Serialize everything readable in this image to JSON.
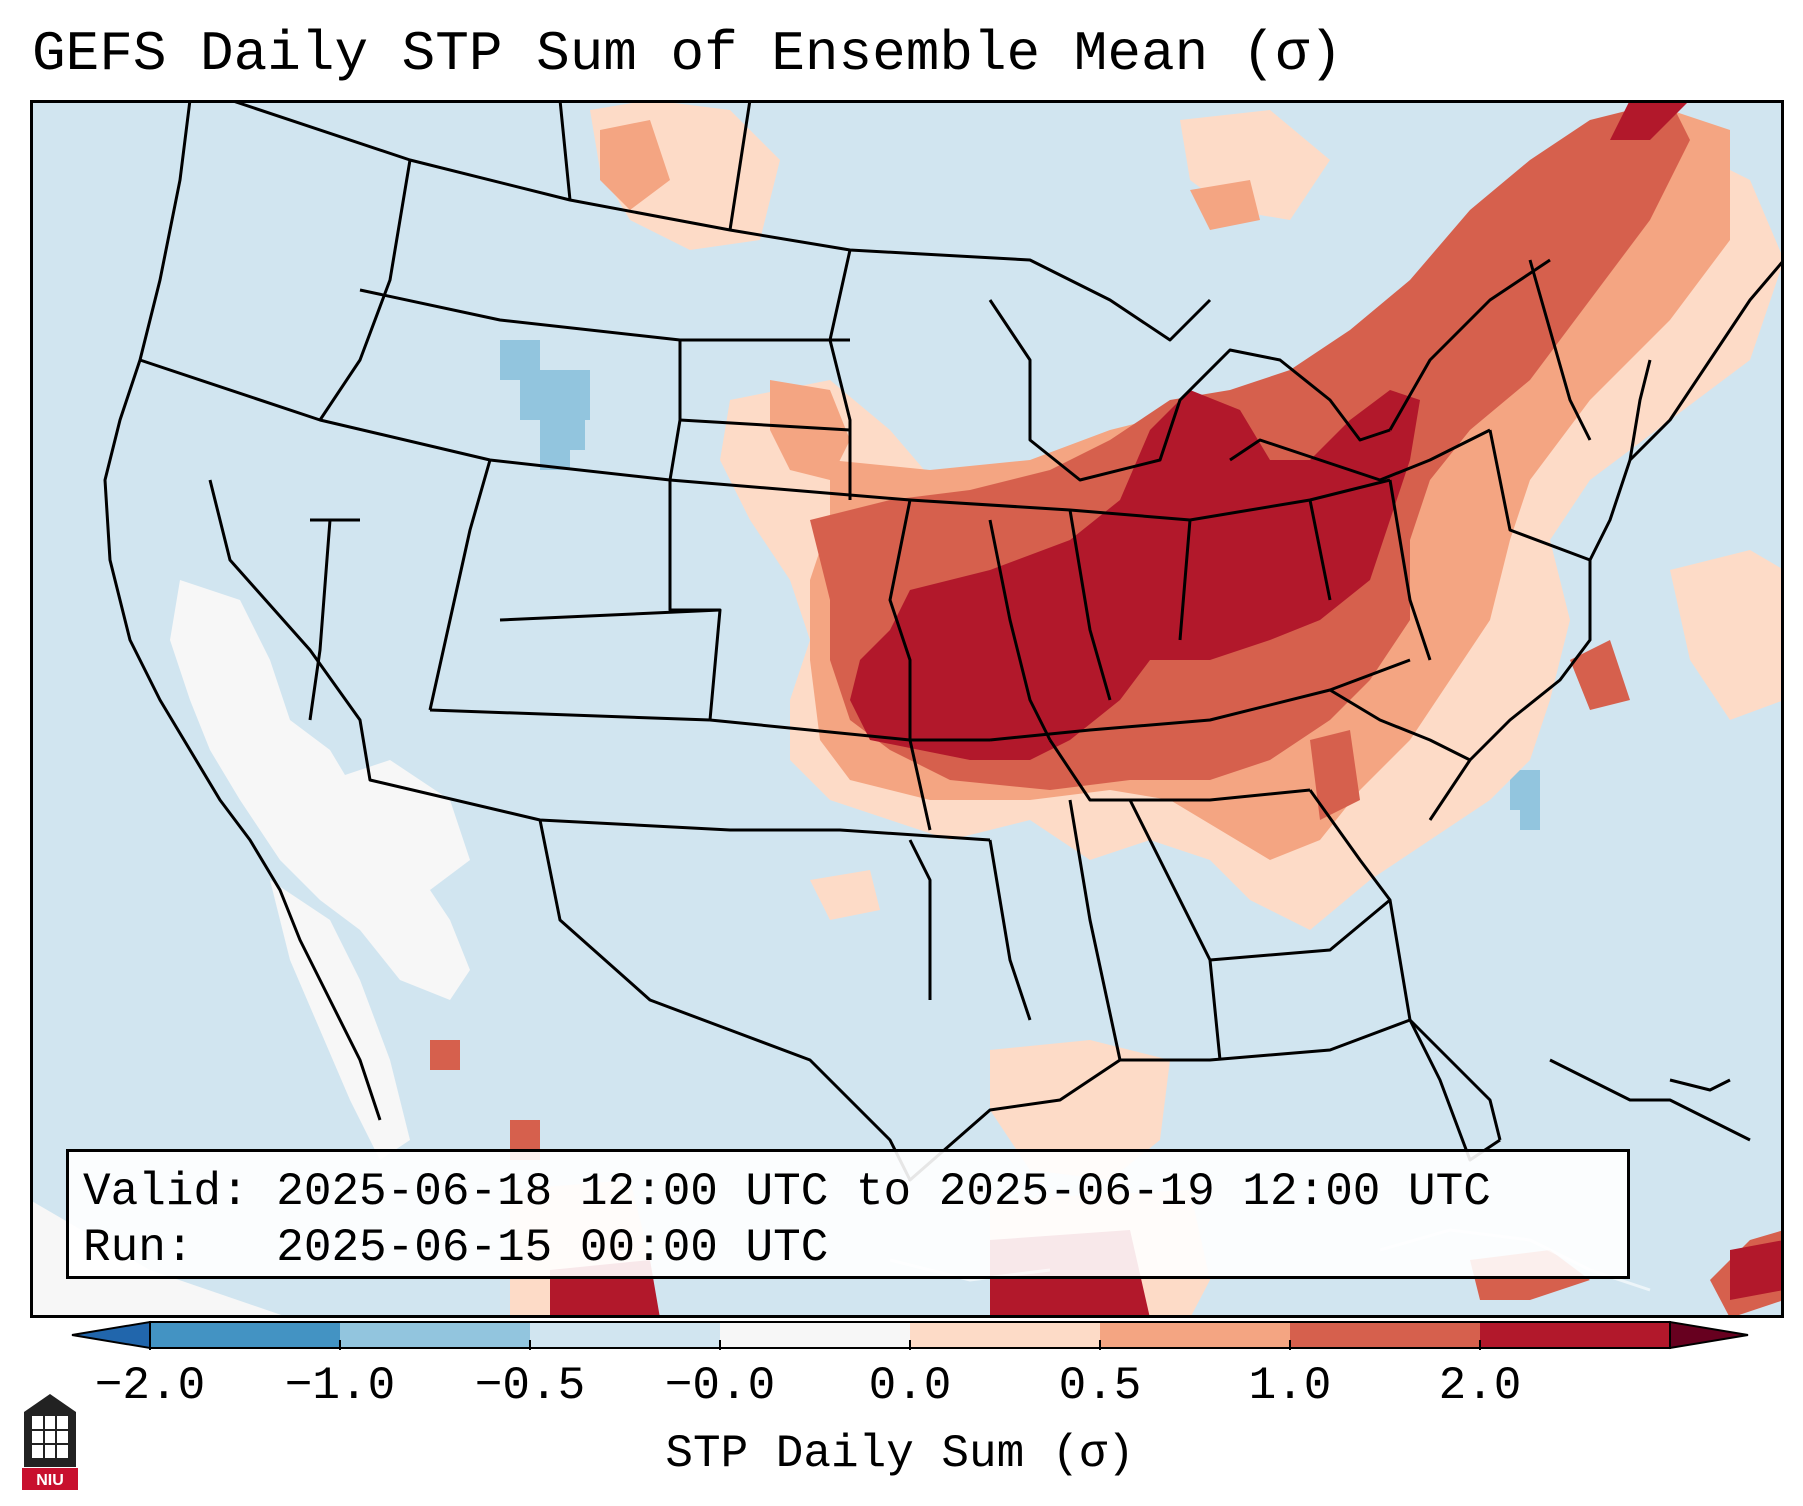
{
  "title": "GEFS Daily STP Sum of Ensemble Mean (σ)",
  "info": {
    "valid_line": "Valid: 2025-06-18 12:00 UTC to 2025-06-19 12:00 UTC",
    "run_line": "Run:   2025-06-15 00:00 UTC"
  },
  "colorbar": {
    "title": "STP Daily Sum (σ)",
    "tick_labels": [
      "−2.0",
      "−1.0",
      "−0.5",
      "−0.0",
      "0.0",
      "0.5",
      "1.0",
      "2.0"
    ],
    "bin_colors": [
      "#4393c3",
      "#92c5de",
      "#d1e5f0",
      "#f7f7f7",
      "#fddbc7",
      "#f4a582",
      "#d6604d",
      "#b2182b"
    ],
    "extend": "both"
  },
  "map": {
    "background_color": "#d1e5f0",
    "region": "Contiguous United States with Mexico and Caribbean",
    "max_anomaly_area": "Missouri, Illinois, Indiana, Ohio, Michigan",
    "logo_text": "NIU"
  }
}
